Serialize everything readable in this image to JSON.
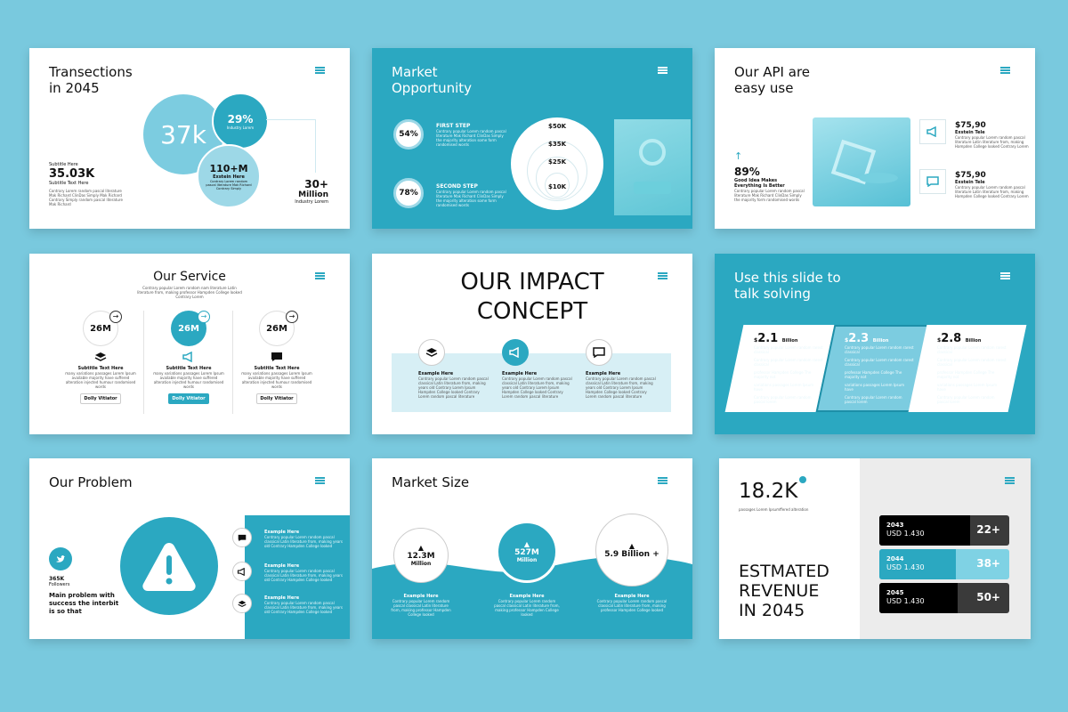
{
  "colors": {
    "background": "#79c9de",
    "accent": "#2ba8c1",
    "light_accent": "#d7eff5",
    "dark": "#111111"
  },
  "slides": [
    {
      "title_line1": "Transections",
      "title_line2": "in 2045",
      "big_circle": "37k",
      "circle_pct": "29%",
      "circle_pct_sub": "Industry Lorem",
      "circle_m": "110+M",
      "circle_m_title": "Exstein Here",
      "circle_m_text": "Contrary Lorem random pascal literature Mak Richard Contrary Simply",
      "subtitle_label": "Subtitle Here",
      "stat": "35.03K",
      "stat_sub": "Subtitle Text Here",
      "body": "Contrary Lorem random pascal literature Mak Richard ClinDas Simply Mak Richard Contrary Simply random pascal literature Mak Richard",
      "right_stat1": "30+",
      "right_stat2": "Million",
      "right_stat_sub": "Industry Lorem"
    },
    {
      "title_line1": "Market",
      "title_line2": "Opportunity",
      "step1_pct": "54%",
      "step1_title": "FIRST STEP",
      "step1_text": "Contrary popular Lorem random pascal literature Mak Richard ClinDas Simply the majority alteration some form randomised words",
      "step2_pct": "78%",
      "step2_title": "SECOND STEP",
      "step2_text": "Contrary popular Lorem random pascal literature Mak Richard ClinDas Simply the majority alteration some form randomised words",
      "market_values": [
        "$50K",
        "$35K",
        "$25K",
        "$10K"
      ]
    },
    {
      "title_line1": "Our API are",
      "title_line2": "easy use",
      "stat": "89%",
      "stat_title": "Good Idea Makes Everything Is Better",
      "stat_text": "Contrary popular Lorem random pascal literature Mak Richard ClinDas Simply the majority form randomised words",
      "items": [
        {
          "icon": "megaphone-icon",
          "price": "$75,90",
          "title": "Exstein Tele",
          "text": "Contrary popular Lorem random pascal literature Latin literature from, making Hampden College looked Contrary Lorem"
        },
        {
          "icon": "chat-icon",
          "price": "$75,90",
          "title": "Exstein Tele",
          "text": "Contrary popular Lorem random pascal literature Latin literature from, making Hampden College looked Contrary Lorem"
        }
      ]
    },
    {
      "title": "Our Service",
      "subtitle": "Contrary popular Lorem random nam literature Latin literature from, making professor Hampden College looked Contrary Lorem",
      "columns": [
        {
          "value": "26M",
          "icon": "layers-icon",
          "title": "Subtitle Text Here",
          "text": "many variations passages Lorem Ipsum available majority have suffered alteration injected humour randomised words",
          "button": "Dolly Vitiator"
        },
        {
          "value": "26M",
          "icon": "megaphone-icon",
          "title": "Subtitle Text Here",
          "text": "many variations passages Lorem Ipsum available majority have suffered alteration injected humour randomised words",
          "button": "Dolly Vitiator"
        },
        {
          "value": "26M",
          "icon": "chat-icon",
          "title": "Subtitle Text Here",
          "text": "many variations passages Lorem Ipsum available majority have suffered alteration injected humour randomised words",
          "button": "Dolly Vitiator"
        }
      ]
    },
    {
      "title_line1": "OUR IMPACT",
      "title_line2": "CONCEPT",
      "items": [
        {
          "icon": "layers-icon",
          "title": "Example Here",
          "text": "Contrary popular Lorem random pascal classical Latin literature from, making years old Contrary Lorem Ipsum Hampden College looked Contrary Lorem random pascal literature"
        },
        {
          "icon": "megaphone-icon",
          "title": "Example Here",
          "text": "Contrary popular Lorem random pascal classical Latin literature from, making years old Contrary Lorem Ipsum Hampden College looked Contrary Lorem random pascal literature"
        },
        {
          "icon": "chat-icon",
          "title": "Example Here",
          "text": "Contrary popular Lorem random pascal classical Latin literature from, making years old Contrary Lorem Ipsum Hampden College looked Contrary Lorem random pascal literature"
        }
      ]
    },
    {
      "title_line1": "Use this slide to",
      "title_line2": "talk solving",
      "cards": [
        {
          "value": "2.1",
          "unit": "Billion",
          "lines": [
            "Contrary popular Lorem random rarest classical",
            "Contrary popular Lorem random rarest classical",
            "professor Hampden College The majority not",
            "variations passages Lorem Ipsum have",
            "Contrary popular Lorem random pascal lorem"
          ]
        },
        {
          "value": "2.3",
          "unit": "Billion",
          "lines": [
            "Contrary popular Lorem random rarest classical",
            "Contrary popular Lorem random rarest classical",
            "professor Hampden College The majority not",
            "variations passages Lorem Ipsum have",
            "Contrary popular Lorem random pascal lorem"
          ]
        },
        {
          "value": "2.8",
          "unit": "Billion",
          "lines": [
            "Contrary popular Lorem random rarest classical",
            "Contrary popular Lorem random rarest classical",
            "professor Hampden College The majority not",
            "variations passages Lorem Ipsum have",
            "Contrary popular Lorem random pascal lorem"
          ]
        }
      ],
      "currency": "$"
    },
    {
      "title": "Our Problem",
      "followers": "365K",
      "followers_label": "Followers",
      "main_text": "Main problem with success the interbit is so that",
      "items": [
        {
          "icon": "chat-icon",
          "title": "Example Here",
          "text": "Contrary popular Lorem random pascal classical Latin literature from, making years old Contrary Hampden College looked"
        },
        {
          "icon": "megaphone-icon",
          "title": "Example Here",
          "text": "Contrary popular Lorem random pascal classical Latin literature from, making years old Contrary Hampden College looked"
        },
        {
          "icon": "layers-icon",
          "title": "Example Here",
          "text": "Contrary popular Lorem random pascal classical Latin literature from, making years old Contrary Hampden College looked"
        }
      ]
    },
    {
      "title": "Market Size",
      "circles": [
        {
          "value": "12.3M",
          "unit": "Million",
          "title": "Example Here",
          "text": "Contrary popular Lorem random pascal classical Latin literature from, making professor Hampden College looked"
        },
        {
          "value": "527M",
          "unit": "Million",
          "title": "Example Here",
          "text": "Contrary popular Lorem random pascal classical Latin literature from, making professor Hampden College looked"
        },
        {
          "value": "5.9 Billion +",
          "unit": "",
          "title": "Example Here",
          "text": "Contrary popular Lorem random pascal classical Latin literature from, making professor Hampden College looked"
        }
      ]
    },
    {
      "big_number": "18.2K",
      "big_number_sub": "passages Lorem Ipsumffered alteration",
      "title_line1": "ESTMATED",
      "title_line2": "REVENUE",
      "title_line3": "IN 2045",
      "bars": [
        {
          "year": "2043",
          "amount": "USD 1.430",
          "value": "22+",
          "style": "dark",
          "fill": 0.7
        },
        {
          "year": "2044",
          "amount": "USD 1.430",
          "value": "38+",
          "style": "teal",
          "fill": 0.59
        },
        {
          "year": "2045",
          "amount": "USD 1.430",
          "value": "50+",
          "style": "dark",
          "fill": 0.6
        }
      ]
    }
  ]
}
